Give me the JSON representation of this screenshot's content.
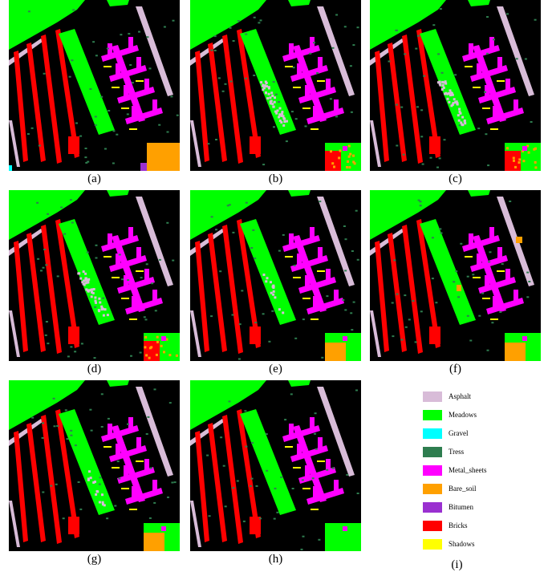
{
  "colors": {
    "background": "#000000",
    "asphalt": "#d8bcd8",
    "meadows": "#00ff00",
    "gravel": "#00ffff",
    "trees": "#2e7d4f",
    "metal_sheets": "#ff00ff",
    "bare_soil": "#ffa000",
    "bitumen": "#9a30d0",
    "bricks": "#ff0000",
    "shadows": "#ffff00"
  },
  "panels": [
    {
      "caption": "(a)",
      "variant": "ground_truth"
    },
    {
      "caption": "(b)",
      "variant": "noisy"
    },
    {
      "caption": "(c)",
      "variant": "noisy"
    },
    {
      "caption": "(d)",
      "variant": "noisy"
    },
    {
      "caption": "(e)",
      "variant": "medium"
    },
    {
      "caption": "(f)",
      "variant": "soil"
    },
    {
      "caption": "(g)",
      "variant": "medium"
    },
    {
      "caption": "(h)",
      "variant": "clean"
    }
  ],
  "legend": {
    "caption": "(i)",
    "items": [
      {
        "label": "Asphalt",
        "color_key": "asphalt"
      },
      {
        "label": "Meadows",
        "color_key": "meadows"
      },
      {
        "label": "Gravel",
        "color_key": "gravel"
      },
      {
        "label": "Tress",
        "color_key": "trees"
      },
      {
        "label": "Metal_sheets",
        "color_key": "metal_sheets"
      },
      {
        "label": "Bare_soil",
        "color_key": "bare_soil"
      },
      {
        "label": "Bitumen",
        "color_key": "bitumen"
      },
      {
        "label": "Bricks",
        "color_key": "bricks"
      },
      {
        "label": "Shadows",
        "color_key": "shadows"
      }
    ]
  }
}
